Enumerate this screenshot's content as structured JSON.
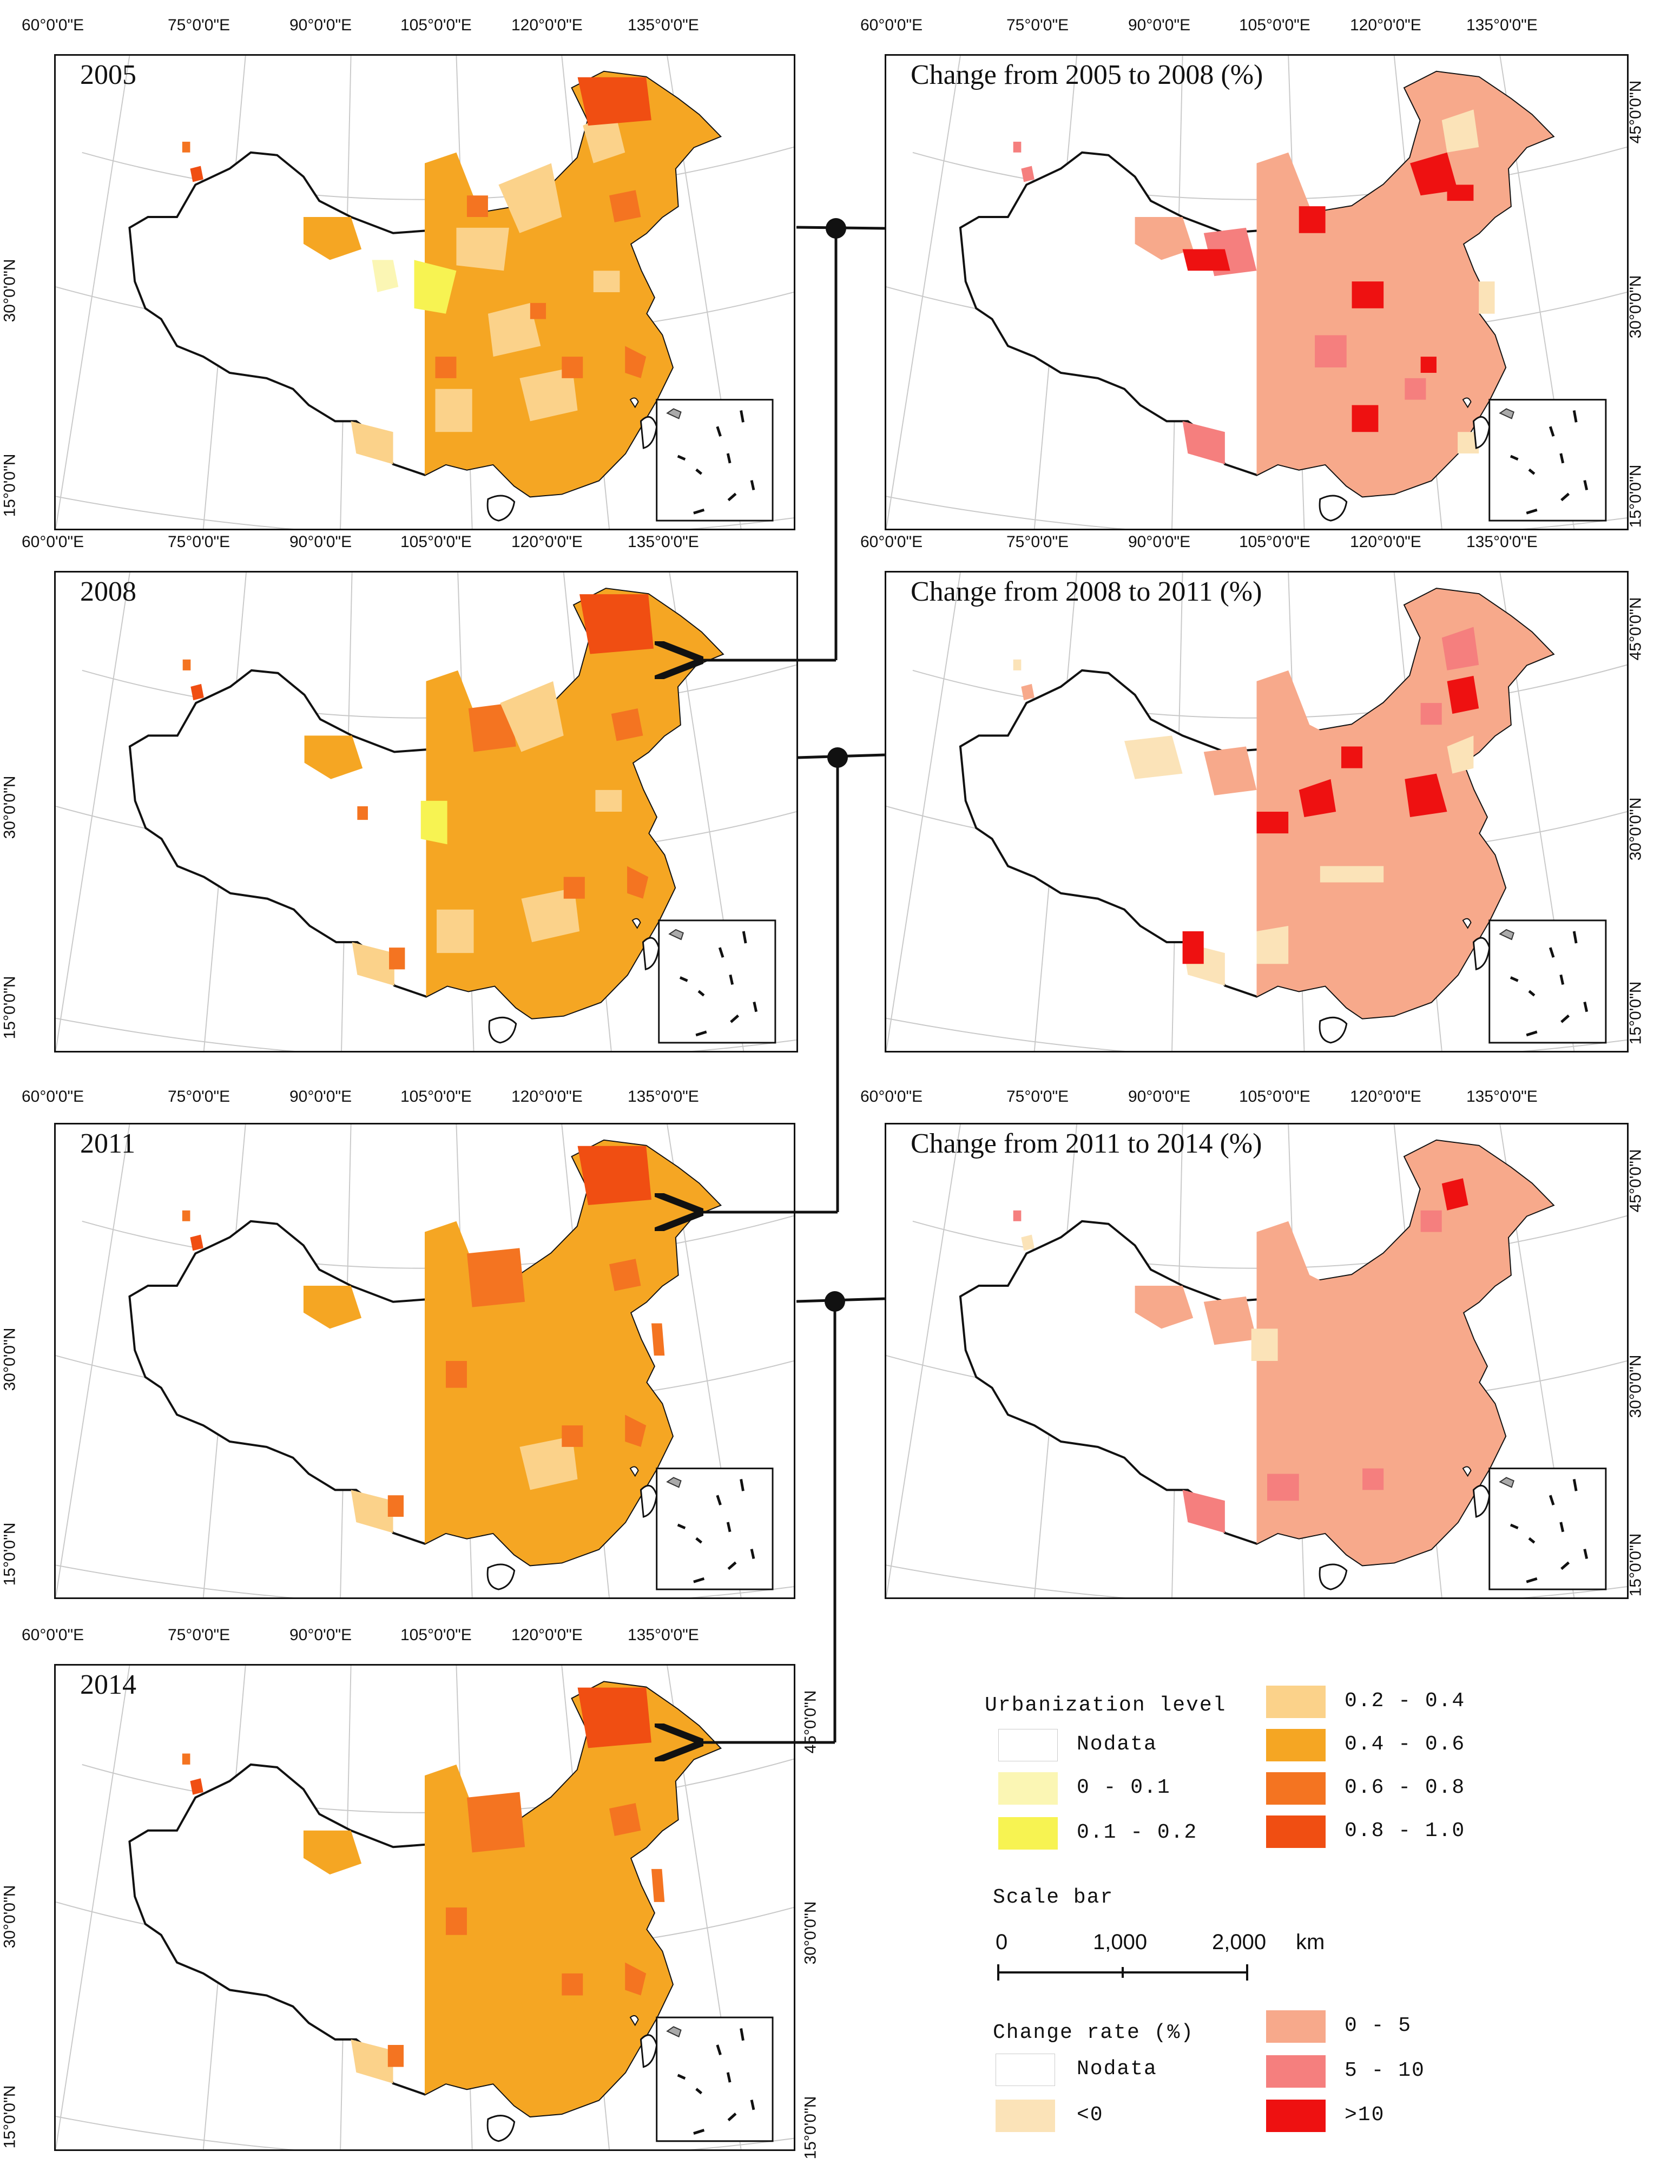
{
  "panels": {
    "p2005": {
      "title": "2005"
    },
    "p2008": {
      "title": "2008"
    },
    "p2011": {
      "title": "2011"
    },
    "p2014": {
      "title": "2014"
    },
    "c0508": {
      "title": "Change from 2005 to 2008 (%)"
    },
    "c0811": {
      "title": "Change from 2008 to 2011 (%)"
    },
    "c1114": {
      "title": "Change from 2011 to 2014 (%)"
    }
  },
  "graticule": {
    "lon": [
      "60°0'0\"E",
      "75°0'0\"E",
      "90°0'0\"E",
      "105°0'0\"E",
      "120°0'0\"E",
      "135°0'0\"E"
    ],
    "lat": [
      "45°0'0\"N",
      "30°0'0\"N",
      "15°0'0\"N"
    ]
  },
  "legend": {
    "urbanization": {
      "title": "Urbanization level",
      "items": [
        {
          "label": "Nodata",
          "color": "#ffffff"
        },
        {
          "label": "0 - 0.1",
          "color": "#fbf6b4"
        },
        {
          "label": "0.1 - 0.2",
          "color": "#f7f352"
        },
        {
          "label": "0.2 - 0.4",
          "color": "#fbd28a"
        },
        {
          "label": "0.4 - 0.6",
          "color": "#f5a623"
        },
        {
          "label": "0.6 - 0.8",
          "color": "#f47421"
        },
        {
          "label": "0.8 - 1.0",
          "color": "#f04e12"
        }
      ]
    },
    "scale": {
      "title": "Scale bar",
      "ticks": [
        "0",
        "1,000",
        "2,000"
      ],
      "unit": "km"
    },
    "change": {
      "title": "Change rate (%)",
      "items": [
        {
          "label": "Nodata",
          "color": "#ffffff"
        },
        {
          "label": "<0",
          "color": "#fbe3b8"
        },
        {
          "label": "0 - 5",
          "color": "#f7a98b"
        },
        {
          "label": "5 - 10",
          "color": "#f57f7e"
        },
        {
          "label": ">10",
          "color": "#ee1111"
        }
      ]
    }
  }
}
